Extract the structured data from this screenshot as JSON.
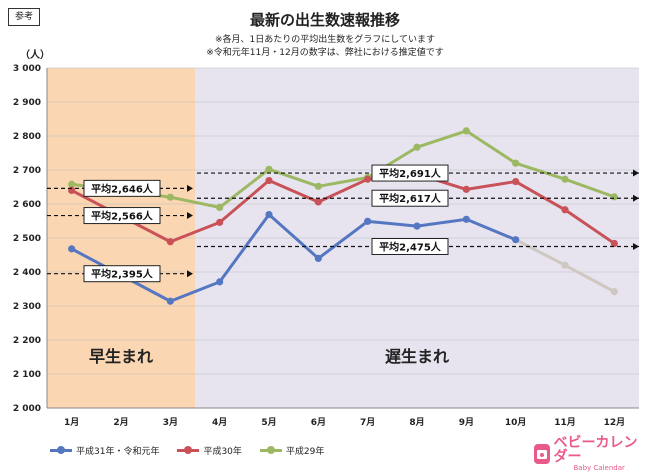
{
  "badge": "参考",
  "title": "最新の出生数速報推移",
  "notes": [
    "※各月、1日あたりの平均出生数をグラフにしています",
    "※令和元年11月・12月の数字は、弊社における推定値です"
  ],
  "unit": "（人）",
  "logo": {
    "main": "ベビーカレンダー",
    "sub": "Baby Calendar"
  },
  "colors": {
    "early_region": "#fbd6b3",
    "late_region": "#e7e4f0",
    "series1": "#5577c2",
    "series2": "#c95258",
    "series3": "#9db862",
    "estimate": "#cfc8c0"
  },
  "chart_data": {
    "type": "line",
    "categories": [
      "1月",
      "2月",
      "3月",
      "4月",
      "5月",
      "6月",
      "7月",
      "8月",
      "9月",
      "10月",
      "11月",
      "12月"
    ],
    "ylim": [
      2000,
      3000
    ],
    "yticks": [
      "3 000",
      "2 900",
      "2 800",
      "2 700",
      "2 600",
      "2 500",
      "2 400",
      "2 300",
      "2 200",
      "2 100",
      "2 000"
    ],
    "series": [
      {
        "name": "平成31年・令和元年",
        "values": [
          2468,
          null,
          2314,
          2371,
          2569,
          2440,
          2549,
          2535,
          2555,
          2495,
          2420,
          2342
        ],
        "estimate_from_index": 9
      },
      {
        "name": "平成30年",
        "values": [
          2640,
          null,
          2489,
          2546,
          2669,
          2606,
          2673,
          2688,
          2643,
          2666,
          2583,
          2484
        ]
      },
      {
        "name": "平成29年",
        "values": [
          2658,
          null,
          2620,
          2590,
          2702,
          2652,
          2678,
          2767,
          2815,
          2720,
          2673,
          2621
        ]
      }
    ],
    "regions": [
      {
        "label": "早生まれ",
        "months": "1月-3月"
      },
      {
        "label": "遅生まれ",
        "months": "4月-12月"
      }
    ],
    "averages": [
      {
        "label": "平均2,646人",
        "value": 2646,
        "region": "early"
      },
      {
        "label": "平均2,566人",
        "value": 2566,
        "region": "early"
      },
      {
        "label": "平均2,395人",
        "value": 2395,
        "region": "early"
      },
      {
        "label": "平均2,691人",
        "value": 2691,
        "region": "late"
      },
      {
        "label": "平均2,617人",
        "value": 2617,
        "region": "late"
      },
      {
        "label": "平均2,475人",
        "value": 2475,
        "region": "late"
      }
    ],
    "legend_placement": "bottom-left"
  }
}
